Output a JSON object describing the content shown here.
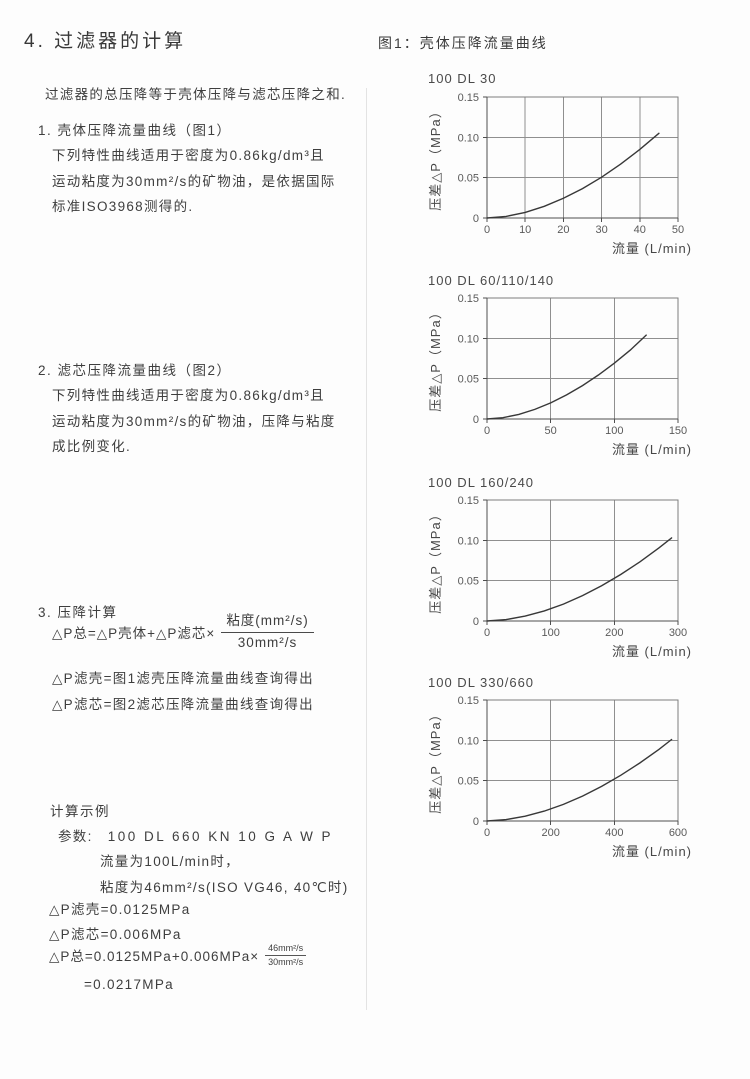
{
  "page": {
    "title": "4. 过滤器的计算"
  },
  "left": {
    "intro": "过滤器的总压降等于壳体压降与滤芯压降之和.",
    "s1": {
      "heading": "1. 壳体压降流量曲线（图1）",
      "lines": [
        "下列特性曲线适用于密度为0.86kg/dm³且",
        "运动粘度为30mm²/s的矿物油，是依据国际",
        "标准ISO3968测得的."
      ]
    },
    "s2": {
      "heading": "2. 滤芯压降流量曲线（图2）",
      "lines": [
        "下列特性曲线适用于密度为0.86kg/dm³且",
        "运动粘度为30mm²/s的矿物油，压降与粘度",
        "成比例变化."
      ]
    },
    "s3": {
      "heading": "3. 压降计算",
      "formula": {
        "lhs": "△P总=△P壳体+△P滤芯×",
        "num": "粘度(mm²/s)",
        "den": "30mm²/s"
      },
      "notes": [
        "△P滤壳=图1滤壳压降流量曲线查询得出",
        "△P滤芯=图2滤芯压降流量曲线查询得出"
      ]
    },
    "example": {
      "title": "计算示例",
      "param_label": "参数:",
      "param_value": "100 DL 660 KN 10 G A W P",
      "conditions": [
        "流量为100L/min时，",
        "粘度为46mm²/s(ISO VG46, 40℃时)"
      ],
      "results": [
        "△P滤壳=0.0125MPa",
        "△P滤芯=0.006MPa"
      ],
      "total": {
        "lhs": "△P总=0.0125MPa+0.006MPa×",
        "num": "46mm²/s",
        "den": "30mm²/s",
        "result": "=0.0217MPa"
      }
    }
  },
  "figure": {
    "title": "图1：壳体压降流量曲线"
  },
  "chart_data": [
    {
      "type": "line",
      "title": "100 DL 30",
      "xlabel": "流量 (L/min)",
      "ylabel": "压差△P（MPa）",
      "xlim": [
        0,
        50
      ],
      "ylim": [
        0,
        0.15
      ],
      "xticks": [
        0,
        10,
        20,
        30,
        40,
        50
      ],
      "yticks": [
        0,
        0.05,
        0.1,
        0.15
      ],
      "ytick_labels": [
        "0",
        "0.05",
        "0.10",
        "0.15"
      ],
      "grid": true,
      "legend": false,
      "points": [
        [
          0,
          0
        ],
        [
          5,
          0.002
        ],
        [
          10,
          0.007
        ],
        [
          15,
          0.0145
        ],
        [
          20,
          0.0244
        ],
        [
          25,
          0.0365
        ],
        [
          30,
          0.0506
        ],
        [
          35,
          0.0668
        ],
        [
          40,
          0.085
        ],
        [
          45,
          0.105
        ]
      ]
    },
    {
      "type": "line",
      "title": "100 DL 60/110/140",
      "xlabel": "流量 (L/min)",
      "ylabel": "压差△P（MPa）",
      "xlim": [
        0,
        150
      ],
      "ylim": [
        0,
        0.15
      ],
      "xticks": [
        0,
        50,
        100,
        150
      ],
      "yticks": [
        0,
        0.05,
        0.1,
        0.15
      ],
      "ytick_labels": [
        "0",
        "0.05",
        "0.10",
        "0.15"
      ],
      "grid": true,
      "legend": false,
      "points": [
        [
          0,
          0
        ],
        [
          12.5,
          0.0016
        ],
        [
          25,
          0.0057
        ],
        [
          37.5,
          0.0119
        ],
        [
          50,
          0.02
        ],
        [
          62.5,
          0.0299
        ],
        [
          75,
          0.0414
        ],
        [
          87.5,
          0.0545
        ],
        [
          100,
          0.0692
        ],
        [
          112.5,
          0.0854
        ],
        [
          125,
          0.104
        ]
      ]
    },
    {
      "type": "line",
      "title": "100 DL 160/240",
      "xlabel": "流量 (L/min)",
      "ylabel": "压差△P（MPa）",
      "xlim": [
        0,
        300
      ],
      "ylim": [
        0,
        0.15
      ],
      "xticks": [
        0,
        100,
        200,
        300
      ],
      "yticks": [
        0,
        0.05,
        0.1,
        0.15
      ],
      "ytick_labels": [
        "0",
        "0.05",
        "0.10",
        "0.15"
      ],
      "grid": true,
      "legend": false,
      "points": [
        [
          0,
          0
        ],
        [
          30,
          0.0017
        ],
        [
          60,
          0.0061
        ],
        [
          90,
          0.0125
        ],
        [
          120,
          0.021
        ],
        [
          150,
          0.0315
        ],
        [
          180,
          0.0437
        ],
        [
          210,
          0.0577
        ],
        [
          240,
          0.0733
        ],
        [
          270,
          0.0906
        ],
        [
          290,
          0.103
        ]
      ]
    },
    {
      "type": "line",
      "title": "100 DL 330/660",
      "xlabel": "流量 (L/min)",
      "ylabel": "压差△P（MPa）",
      "xlim": [
        0,
        600
      ],
      "ylim": [
        0,
        0.15
      ],
      "xticks": [
        0,
        200,
        400,
        600
      ],
      "yticks": [
        0,
        0.05,
        0.1,
        0.15
      ],
      "ytick_labels": [
        "0",
        "0.05",
        "0.10",
        "0.15"
      ],
      "grid": true,
      "legend": false,
      "points": [
        [
          0,
          0
        ],
        [
          60,
          0.0017
        ],
        [
          120,
          0.0059
        ],
        [
          180,
          0.0123
        ],
        [
          240,
          0.0206
        ],
        [
          300,
          0.0309
        ],
        [
          360,
          0.0429
        ],
        [
          420,
          0.0566
        ],
        [
          480,
          0.0719
        ],
        [
          540,
          0.0888
        ],
        [
          580,
          0.101
        ]
      ]
    }
  ]
}
